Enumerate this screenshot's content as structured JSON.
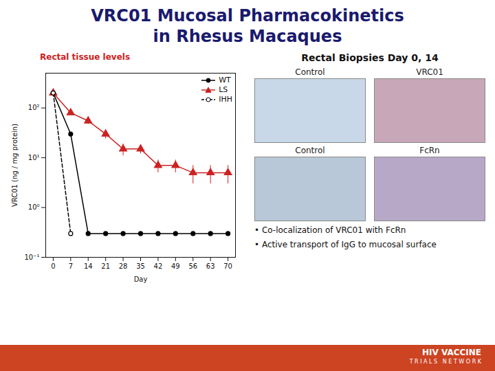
{
  "chart_data": {
    "type": "line",
    "title": "VRC01 Mucosal Pharmacokinetics",
    "subtitle": "in Rhesus Macaques",
    "x_label": "Day",
    "y_label": "VRC01 (ng / mg protein)",
    "log": "y",
    "grid": false,
    "legend": "upper right",
    "xlim": [
      -3,
      73
    ],
    "xticks": [
      0,
      7,
      14,
      21,
      28,
      35,
      42,
      49,
      56,
      63,
      70
    ],
    "ylim": [
      0.1,
      500
    ],
    "yticks": [
      {
        "value": 0.1,
        "label": "10⁻¹"
      },
      {
        "value": 1,
        "label": "10⁰"
      },
      {
        "value": 10,
        "label": "10¹"
      },
      {
        "value": 100,
        "label": "10²"
      }
    ],
    "series": [
      {
        "name": "WT",
        "color": "#000000",
        "marker": "circle",
        "line_style": "solid",
        "x": [
          0,
          7,
          14,
          21,
          28,
          35,
          42,
          49,
          56,
          63,
          70
        ],
        "values": [
          200,
          30,
          0.3,
          0.3,
          0.3,
          0.3,
          0.3,
          0.3,
          0.3,
          0.3,
          0.3
        ]
      },
      {
        "name": "LS",
        "color": "#cc2222",
        "marker": "triangle",
        "line_style": "solid",
        "x": [
          0,
          7,
          14,
          21,
          28,
          35,
          42,
          49,
          56,
          63,
          70
        ],
        "values": [
          200,
          80,
          55,
          30,
          15,
          15,
          7,
          7,
          5,
          5,
          5
        ],
        "errors": [
          3,
          5,
          8,
          6,
          4,
          3,
          2,
          2,
          2,
          2,
          2
        ]
      },
      {
        "name": "IHH",
        "color": "#000000",
        "marker": "circle_open",
        "line_style": "dashed",
        "x": [
          0,
          7
        ],
        "values": [
          200,
          0.3
        ]
      }
    ],
    "annotations": [
      "Rectal tissue levels",
      "Rectal Biopsies Day 0, 14",
      "Control",
      "VRC01",
      "Control",
      "FcRn",
      "• Co-localization of VRC01 with FcRn",
      "• Active transport of IgG to mucosal surface",
      "HIV VACCINE",
      "T R I A L S   N E T W O R K"
    ]
  }
}
